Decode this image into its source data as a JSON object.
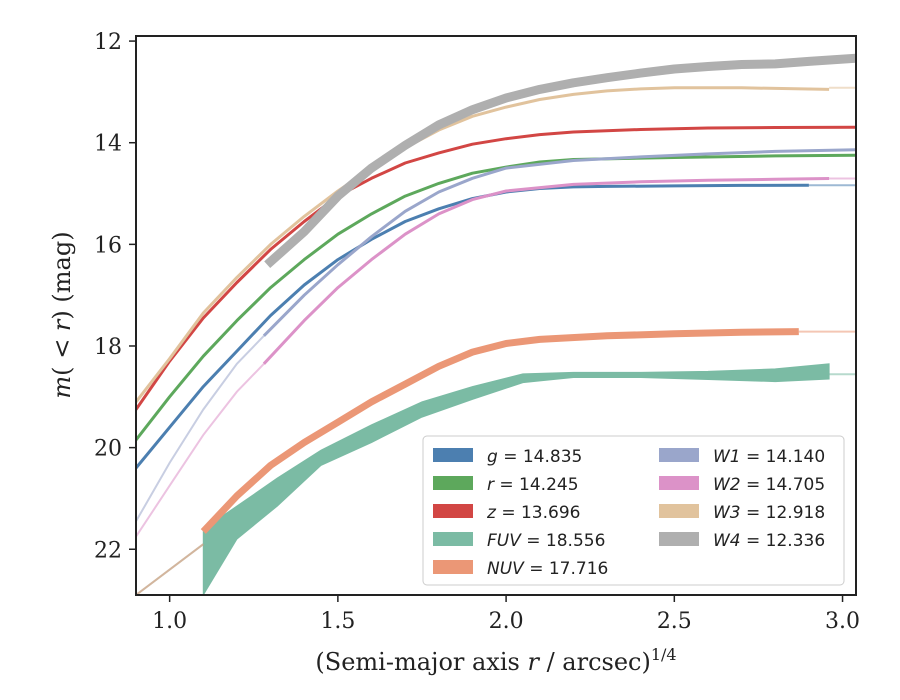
{
  "chart_data": {
    "type": "line",
    "xlabel": "(Semi-major axis r / arcsec)",
    "xlabel_parts": {
      "prefix": "(Semi-major axis ",
      "var": "r",
      "suffix": " / arcsec)",
      "sup": "1/4"
    },
    "ylabel_parts": {
      "m": "m",
      "open": "(",
      "lt": " < ",
      "r": "r",
      "close": ")",
      "unit": " (mag)"
    },
    "xlim": [
      0.9,
      3.04
    ],
    "ylim": [
      22.9,
      11.9
    ],
    "y_inverted": true,
    "xticks": [
      1.0,
      1.5,
      2.0,
      2.5,
      3.0
    ],
    "xtick_labels": [
      "1.0",
      "1.5",
      "2.0",
      "2.5",
      "3.0"
    ],
    "yticks": [
      12,
      14,
      16,
      18,
      20,
      22
    ],
    "ytick_labels": [
      "12",
      "14",
      "16",
      "18",
      "20",
      "22"
    ],
    "grid": false,
    "legend_position": "lower-right",
    "legend_columns": 2,
    "series": [
      {
        "band": "g",
        "value": "14.835",
        "color": "#4C7FB0",
        "width": 3,
        "x": [
          0.9,
          1.0,
          1.1,
          1.2,
          1.3,
          1.4,
          1.5,
          1.6,
          1.7,
          1.8,
          1.9,
          2.0,
          2.1,
          2.2,
          2.3,
          2.5,
          2.7,
          2.9
        ],
        "y": [
          20.4,
          19.6,
          18.8,
          18.1,
          17.4,
          16.8,
          16.3,
          15.9,
          15.55,
          15.3,
          15.1,
          14.97,
          14.9,
          14.87,
          14.86,
          14.85,
          14.84,
          14.835
        ],
        "ext_x": [
          2.9,
          3.04
        ],
        "ext_y": [
          14.835,
          14.835
        ]
      },
      {
        "band": "r",
        "value": "14.245",
        "color": "#5DA85C",
        "width": 3,
        "x": [
          0.9,
          1.0,
          1.1,
          1.2,
          1.3,
          1.4,
          1.5,
          1.6,
          1.7,
          1.8,
          1.9,
          2.0,
          2.1,
          2.2,
          2.5,
          2.8,
          3.04
        ],
        "y": [
          19.85,
          19.0,
          18.2,
          17.5,
          16.85,
          16.3,
          15.8,
          15.4,
          15.05,
          14.8,
          14.6,
          14.48,
          14.38,
          14.33,
          14.29,
          14.26,
          14.245
        ]
      },
      {
        "band": "z",
        "value": "13.696",
        "color": "#D24644",
        "width": 3,
        "x": [
          0.9,
          1.0,
          1.1,
          1.2,
          1.3,
          1.4,
          1.5,
          1.6,
          1.7,
          1.8,
          1.9,
          2.0,
          2.1,
          2.2,
          2.4,
          2.6,
          2.8,
          3.04
        ],
        "y": [
          19.25,
          18.3,
          17.45,
          16.75,
          16.1,
          15.55,
          15.05,
          14.7,
          14.4,
          14.2,
          14.03,
          13.92,
          13.84,
          13.79,
          13.74,
          13.71,
          13.7,
          13.696
        ]
      },
      {
        "band": "FUV",
        "value": "18.556",
        "color": "#7BBBA4",
        "band_fill": true,
        "x": [
          1.1,
          1.2,
          1.32,
          1.45,
          1.6,
          1.75,
          1.9,
          2.05,
          2.2,
          2.4,
          2.6,
          2.8,
          2.96
        ],
        "y_top": [
          21.6,
          21.15,
          20.6,
          20.05,
          19.55,
          19.1,
          18.8,
          18.55,
          18.52,
          18.52,
          18.5,
          18.45,
          18.35
        ],
        "y_bottom": [
          22.9,
          21.8,
          21.15,
          20.35,
          19.9,
          19.4,
          19.05,
          18.72,
          18.62,
          18.62,
          18.66,
          18.7,
          18.65
        ],
        "pre_x": [
          0.9,
          1.1
        ],
        "pre_y": [
          22.9,
          21.9
        ],
        "ext_x": [
          2.96,
          3.04
        ],
        "ext_y": [
          18.556,
          18.556
        ]
      },
      {
        "band": "NUV",
        "value": "17.716",
        "color": "#EB9776",
        "width": 7,
        "x": [
          1.1,
          1.2,
          1.3,
          1.4,
          1.5,
          1.6,
          1.7,
          1.8,
          1.9,
          2.0,
          2.1,
          2.3,
          2.5,
          2.7,
          2.87
        ],
        "y": [
          21.65,
          20.95,
          20.35,
          19.9,
          19.5,
          19.1,
          18.75,
          18.4,
          18.12,
          17.95,
          17.87,
          17.8,
          17.76,
          17.73,
          17.716
        ],
        "pre_x": [
          0.9,
          1.1
        ],
        "pre_y": [
          22.9,
          21.9
        ],
        "ext_x": [
          2.87,
          3.04
        ],
        "ext_y": [
          17.716,
          17.716
        ]
      },
      {
        "band": "W1",
        "value": "14.140",
        "color": "#9AA6CB",
        "width": 3,
        "x": [
          1.28,
          1.4,
          1.5,
          1.6,
          1.7,
          1.8,
          1.9,
          2.0,
          2.2,
          2.4,
          2.6,
          2.8,
          3.04
        ],
        "y": [
          17.8,
          17.0,
          16.4,
          15.85,
          15.35,
          14.97,
          14.7,
          14.5,
          14.35,
          14.28,
          14.22,
          14.17,
          14.14
        ],
        "pre_x": [
          0.9,
          1.0,
          1.1,
          1.2,
          1.28
        ],
        "pre_y": [
          21.45,
          20.3,
          19.25,
          18.35,
          17.8
        ]
      },
      {
        "band": "W2",
        "value": "14.705",
        "color": "#DC92C8",
        "width": 3,
        "x": [
          1.28,
          1.4,
          1.5,
          1.6,
          1.7,
          1.8,
          1.9,
          2.0,
          2.2,
          2.4,
          2.6,
          2.8,
          2.96
        ],
        "y": [
          18.35,
          17.5,
          16.85,
          16.3,
          15.8,
          15.4,
          15.12,
          14.95,
          14.82,
          14.77,
          14.74,
          14.72,
          14.705
        ],
        "pre_x": [
          0.9,
          1.0,
          1.1,
          1.2,
          1.28
        ],
        "pre_y": [
          21.75,
          20.75,
          19.75,
          18.9,
          18.35
        ],
        "ext_x": [
          2.96,
          3.04
        ],
        "ext_y": [
          14.705,
          14.705
        ]
      },
      {
        "band": "W3",
        "value": "12.918",
        "color": "#E1C39D",
        "width": 3,
        "x": [
          0.9,
          1.0,
          1.1,
          1.2,
          1.3,
          1.4,
          1.5,
          1.6,
          1.7,
          1.8,
          1.9,
          2.0,
          2.1,
          2.2,
          2.3,
          2.4,
          2.5,
          2.7,
          2.96
        ],
        "y": [
          19.1,
          18.25,
          17.35,
          16.65,
          16.0,
          15.45,
          14.95,
          14.5,
          14.1,
          13.75,
          13.48,
          13.3,
          13.15,
          13.05,
          12.98,
          12.94,
          12.92,
          12.92,
          12.95
        ],
        "ext_x": [
          2.96,
          3.04
        ],
        "ext_y": [
          12.918,
          12.918
        ]
      },
      {
        "band": "W4",
        "value": "12.336",
        "color": "#AFAFAF",
        "width": 9,
        "x": [
          1.29,
          1.4,
          1.5,
          1.6,
          1.7,
          1.8,
          1.9,
          2.0,
          2.1,
          2.2,
          2.3,
          2.4,
          2.5,
          2.6,
          2.7,
          2.8,
          2.9,
          3.04
        ],
        "y": [
          16.4,
          15.75,
          15.05,
          14.5,
          14.05,
          13.65,
          13.35,
          13.12,
          12.95,
          12.82,
          12.72,
          12.63,
          12.55,
          12.5,
          12.46,
          12.45,
          12.4,
          12.336
        ]
      }
    ]
  }
}
